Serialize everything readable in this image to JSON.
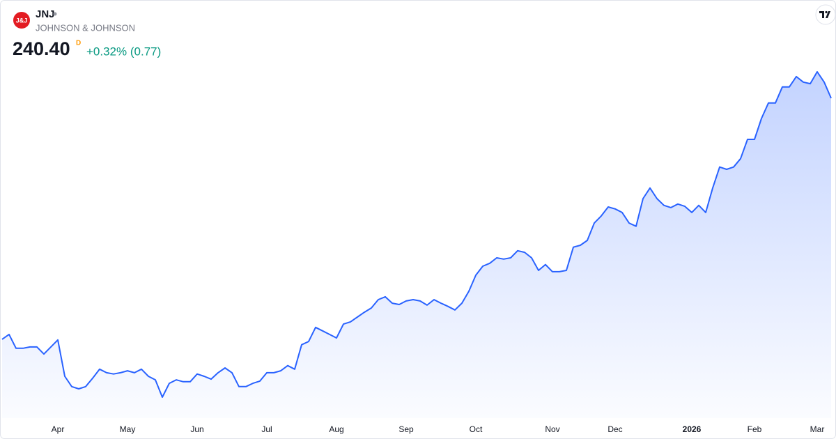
{
  "header": {
    "logo": "J&J",
    "symbol": "JNJ",
    "name": "JOHNSON & JOHNSON",
    "price": "240.40",
    "flag": "D",
    "change": "+0.32% (0.77)"
  },
  "chart_data": {
    "type": "area",
    "color": "#2962ff",
    "categories": [
      null,
      null,
      null,
      null,
      null,
      null,
      null,
      null,
      "Apr",
      null,
      null,
      null,
      null,
      null,
      null,
      null,
      null,
      null,
      "May",
      null,
      null,
      null,
      null,
      null,
      null,
      null,
      null,
      null,
      "Jun",
      null,
      null,
      null,
      null,
      null,
      null,
      null,
      null,
      null,
      "Jul",
      null,
      null,
      null,
      null,
      null,
      null,
      null,
      null,
      null,
      "Aug",
      null,
      null,
      null,
      null,
      null,
      null,
      null,
      null,
      null,
      "Sep",
      null,
      null,
      null,
      null,
      null,
      null,
      null,
      null,
      null,
      "Oct",
      null,
      null,
      null,
      null,
      null,
      null,
      null,
      null,
      null,
      null,
      "Nov",
      null,
      null,
      null,
      null,
      null,
      null,
      null,
      null,
      "Dec",
      null,
      null,
      null,
      null,
      null,
      null,
      null,
      null,
      null,
      null,
      "2026",
      null,
      null,
      null,
      null,
      null,
      null,
      null,
      null,
      "Feb",
      null,
      null,
      null,
      null,
      null,
      null,
      null,
      null,
      "Mar",
      null,
      null
    ],
    "values": [
      165.5,
      167.0,
      162.7,
      162.7,
      163.1,
      163.1,
      160.9,
      163.1,
      165.3,
      154.0,
      150.8,
      150.1,
      150.8,
      153.4,
      156.2,
      155.1,
      154.7,
      155.1,
      155.7,
      155.1,
      156.2,
      154.0,
      152.9,
      147.5,
      151.8,
      152.9,
      152.3,
      152.3,
      154.7,
      154.0,
      153.1,
      155.1,
      156.6,
      155.1,
      150.8,
      150.8,
      151.8,
      152.5,
      155.1,
      155.1,
      155.7,
      157.3,
      156.2,
      163.8,
      164.8,
      169.2,
      168.1,
      167.0,
      165.9,
      170.2,
      170.9,
      172.4,
      173.9,
      175.2,
      177.8,
      178.7,
      176.7,
      176.3,
      177.4,
      177.8,
      177.4,
      176.1,
      177.8,
      176.7,
      175.7,
      174.6,
      176.7,
      180.4,
      185.4,
      188.2,
      189.1,
      190.8,
      190.4,
      190.8,
      193.0,
      192.5,
      190.8,
      186.9,
      188.7,
      186.5,
      186.5,
      186.9,
      194.1,
      194.7,
      196.2,
      201.6,
      203.8,
      206.6,
      206.0,
      204.9,
      201.6,
      200.6,
      209.2,
      212.5,
      209.2,
      207.1,
      206.4,
      207.5,
      206.8,
      204.9,
      207.1,
      204.9,
      212.5,
      219.0,
      218.3,
      219.0,
      221.6,
      227.6,
      227.6,
      234.1,
      238.9,
      238.9,
      243.9,
      243.9,
      247.1,
      245.4,
      244.9,
      248.6,
      245.4,
      240.4
    ]
  }
}
